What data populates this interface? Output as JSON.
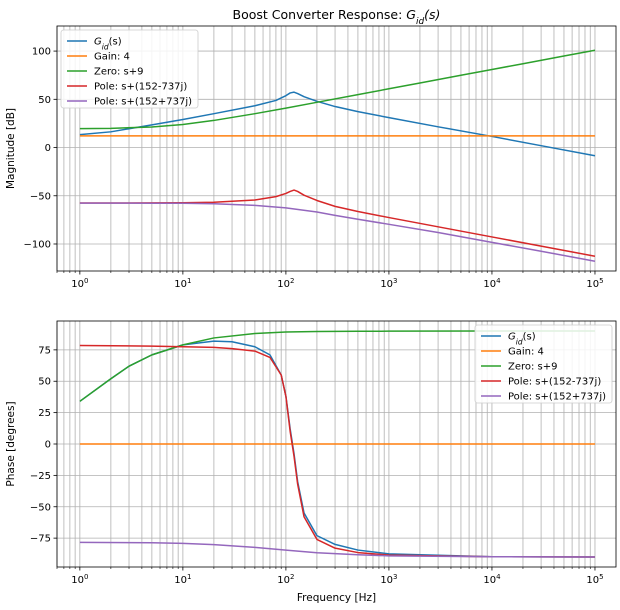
{
  "chart_data": [
    {
      "type": "line",
      "title": "Boost Converter Response: G_id(s)",
      "title_parts": {
        "prefix": "Boost Converter Response: ",
        "main": "G",
        "sub": "id",
        "suffix": "(s)"
      },
      "xlabel": "",
      "ylabel": "Magnitude [dB]",
      "xscale": "log",
      "xlim": [
        0.6,
        160000
      ],
      "ylim": [
        -128,
        126
      ],
      "xticks": [
        1,
        10,
        100,
        1000,
        10000,
        100000
      ],
      "xtick_labels": [
        {
          "base": "10",
          "exp": "0"
        },
        {
          "base": "10",
          "exp": "1"
        },
        {
          "base": "10",
          "exp": "2"
        },
        {
          "base": "10",
          "exp": "3"
        },
        {
          "base": "10",
          "exp": "4"
        },
        {
          "base": "10",
          "exp": "5"
        }
      ],
      "yticks": [
        -100,
        -50,
        0,
        50,
        100
      ],
      "ytick_labels": [
        "−100",
        "−50",
        "0",
        "50",
        "100"
      ],
      "grid": true,
      "grid_minor_x": true,
      "legend_position": "top-left",
      "series": [
        {
          "name": "G_id(s)",
          "label_parts": {
            "main": "G",
            "sub": "id",
            "suffix": "(s)"
          },
          "color": "#1f77b4",
          "x": [
            1,
            2,
            5,
            10,
            20,
            50,
            80,
            100,
            110,
            120,
            130,
            150,
            200,
            300,
            500,
            1000,
            3000,
            10000,
            30000,
            100000
          ],
          "y": [
            13.4,
            16.3,
            23.5,
            29.1,
            35.1,
            43.3,
            48.8,
            53.8,
            56.6,
            57.4,
            56.0,
            52.7,
            47.9,
            42.5,
            37.2,
            31.0,
            21.5,
            11.5,
            1.9,
            -8.5
          ]
        },
        {
          "name": "Gain: 4",
          "color": "#ff7f0e",
          "x": [
            1,
            100000
          ],
          "y": [
            12.04,
            12.04
          ]
        },
        {
          "name": "Zero: s+9",
          "color": "#2ca02c",
          "x": [
            1,
            2,
            5,
            10,
            20,
            50,
            100,
            200,
            500,
            1000,
            2000,
            5000,
            10000,
            20000,
            50000,
            100000
          ],
          "y": [
            19.6,
            19.9,
            21.3,
            23.9,
            28.1,
            35.1,
            40.9,
            46.9,
            54.9,
            60.9,
            66.9,
            74.9,
            80.9,
            86.9,
            94.9,
            100.9
          ]
        },
        {
          "name": "Pole: s+(152-737j)",
          "color": "#d62728",
          "x": [
            1,
            2,
            5,
            10,
            20,
            50,
            80,
            100,
            110,
            120,
            130,
            150,
            200,
            300,
            500,
            1000,
            3000,
            10000,
            30000,
            100000
          ],
          "y": [
            -57.5,
            -57.5,
            -57.4,
            -57.2,
            -56.7,
            -54.4,
            -50.9,
            -47.6,
            -45.5,
            -44.1,
            -45.5,
            -49.4,
            -54.9,
            -61.0,
            -66.3,
            -72.6,
            -82.2,
            -92.7,
            -102.2,
            -112.7
          ]
        },
        {
          "name": "Pole: s+(152+737j)",
          "color": "#9467bd",
          "x": [
            1,
            2,
            5,
            10,
            20,
            50,
            100,
            200,
            300,
            500,
            1000,
            3000,
            10000,
            30000,
            100000
          ],
          "y": [
            -57.6,
            -57.6,
            -57.7,
            -57.8,
            -58.3,
            -60.0,
            -62.6,
            -66.8,
            -70.3,
            -74.4,
            -79.6,
            -88.1,
            -98.3,
            -107.5,
            -117.9
          ]
        }
      ]
    },
    {
      "type": "line",
      "title": "",
      "xlabel": "Frequency [Hz]",
      "ylabel": "Phase [degrees]",
      "xscale": "log",
      "xlim": [
        0.6,
        160000
      ],
      "ylim": [
        -98,
        98
      ],
      "xticks": [
        1,
        10,
        100,
        1000,
        10000,
        100000
      ],
      "xtick_labels": [
        {
          "base": "10",
          "exp": "0"
        },
        {
          "base": "10",
          "exp": "1"
        },
        {
          "base": "10",
          "exp": "2"
        },
        {
          "base": "10",
          "exp": "3"
        },
        {
          "base": "10",
          "exp": "4"
        },
        {
          "base": "10",
          "exp": "5"
        }
      ],
      "yticks": [
        -75,
        -50,
        -25,
        0,
        25,
        50,
        75
      ],
      "ytick_labels": [
        "−75",
        "−50",
        "−25",
        "0",
        "25",
        "50",
        "75"
      ],
      "grid": true,
      "grid_minor_x": true,
      "legend_position": "top-right",
      "series": [
        {
          "name": "G_id(s)",
          "label_parts": {
            "main": "G",
            "sub": "id",
            "suffix": "(s)"
          },
          "color": "#1f77b4",
          "x": [
            1,
            2,
            3,
            5,
            10,
            20,
            30,
            50,
            70,
            90,
            100,
            110,
            120,
            130,
            150,
            200,
            300,
            500,
            1000,
            10000,
            100000
          ],
          "y": [
            34,
            52,
            62,
            71,
            79,
            82,
            81.5,
            77.5,
            71,
            55,
            38,
            12,
            -8,
            -30,
            -55,
            -73,
            -80,
            -84.5,
            -87.5,
            -89.8,
            -90
          ]
        },
        {
          "name": "Gain: 4",
          "color": "#ff7f0e",
          "x": [
            1,
            100000
          ],
          "y": [
            0,
            0
          ]
        },
        {
          "name": "Zero: s+9",
          "color": "#2ca02c",
          "x": [
            1,
            2,
            3,
            5,
            10,
            20,
            50,
            100,
            200,
            500,
            1000,
            10000,
            100000
          ],
          "y": [
            34,
            52,
            62,
            71,
            79,
            84.5,
            88,
            89.2,
            89.6,
            89.8,
            89.9,
            90,
            90
          ]
        },
        {
          "name": "Pole: s+(152-737j)",
          "color": "#d62728",
          "x": [
            1,
            5,
            10,
            20,
            30,
            50,
            70,
            90,
            100,
            110,
            120,
            130,
            150,
            200,
            300,
            500,
            1000,
            10000,
            100000
          ],
          "y": [
            78.5,
            78,
            77.5,
            77,
            76,
            74,
            69,
            55,
            38,
            10,
            -10,
            -32,
            -58,
            -76,
            -83,
            -86.5,
            -88.5,
            -89.8,
            -90
          ]
        },
        {
          "name": "Pole: s+(152+737j)",
          "color": "#9467bd",
          "x": [
            1,
            5,
            10,
            20,
            50,
            100,
            200,
            500,
            1000,
            10000,
            100000
          ],
          "y": [
            -78.4,
            -78.7,
            -79.2,
            -80.2,
            -82.4,
            -84.6,
            -86.6,
            -88.2,
            -89.1,
            -89.8,
            -90
          ]
        }
      ]
    }
  ]
}
